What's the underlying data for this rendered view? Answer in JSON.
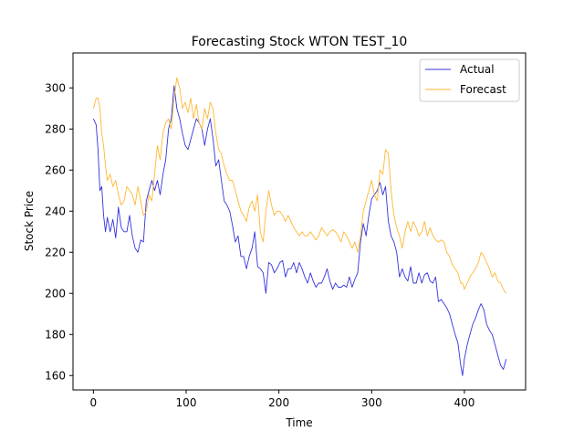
{
  "chart_data": {
    "type": "line",
    "title": "Forecasting Stock WTON TEST_10",
    "xlabel": "Time",
    "ylabel": "Stock Price",
    "xlim": [
      -22,
      466
    ],
    "ylim": [
      153,
      317
    ],
    "xticks": [
      0,
      100,
      200,
      300,
      400
    ],
    "yticks": [
      160,
      180,
      200,
      220,
      240,
      260,
      280,
      300
    ],
    "grid": false,
    "legend_position": "top-right",
    "series": [
      {
        "name": "Actual",
        "color": "#3333dd",
        "points": [
          [
            0,
            285
          ],
          [
            3,
            282
          ],
          [
            5,
            270
          ],
          [
            7,
            250
          ],
          [
            9,
            252
          ],
          [
            11,
            238
          ],
          [
            13,
            230
          ],
          [
            15,
            237
          ],
          [
            18,
            230
          ],
          [
            21,
            236
          ],
          [
            24,
            227
          ],
          [
            27,
            242
          ],
          [
            30,
            232
          ],
          [
            33,
            230
          ],
          [
            36,
            230
          ],
          [
            39,
            238
          ],
          [
            42,
            228
          ],
          [
            45,
            222
          ],
          [
            48,
            220
          ],
          [
            51,
            226
          ],
          [
            54,
            225
          ],
          [
            57,
            245
          ],
          [
            60,
            250
          ],
          [
            63,
            255
          ],
          [
            66,
            250
          ],
          [
            69,
            255
          ],
          [
            72,
            248
          ],
          [
            75,
            258
          ],
          [
            78,
            265
          ],
          [
            81,
            280
          ],
          [
            84,
            285
          ],
          [
            87,
            301
          ],
          [
            90,
            290
          ],
          [
            93,
            285
          ],
          [
            96,
            278
          ],
          [
            99,
            272
          ],
          [
            102,
            270
          ],
          [
            105,
            275
          ],
          [
            108,
            280
          ],
          [
            111,
            285
          ],
          [
            114,
            283
          ],
          [
            117,
            280
          ],
          [
            120,
            272
          ],
          [
            123,
            280
          ],
          [
            126,
            285
          ],
          [
            129,
            275
          ],
          [
            132,
            262
          ],
          [
            135,
            265
          ],
          [
            138,
            255
          ],
          [
            141,
            245
          ],
          [
            144,
            243
          ],
          [
            147,
            240
          ],
          [
            150,
            233
          ],
          [
            153,
            225
          ],
          [
            156,
            228
          ],
          [
            159,
            218
          ],
          [
            162,
            218
          ],
          [
            165,
            212
          ],
          [
            168,
            218
          ],
          [
            171,
            222
          ],
          [
            174,
            230
          ],
          [
            177,
            213
          ],
          [
            180,
            212
          ],
          [
            183,
            210
          ],
          [
            186,
            200
          ],
          [
            189,
            215
          ],
          [
            192,
            214
          ],
          [
            195,
            210
          ],
          [
            198,
            212
          ],
          [
            201,
            215
          ],
          [
            204,
            216
          ],
          [
            207,
            208
          ],
          [
            210,
            212
          ],
          [
            213,
            212
          ],
          [
            216,
            215
          ],
          [
            219,
            210
          ],
          [
            222,
            215
          ],
          [
            225,
            212
          ],
          [
            228,
            208
          ],
          [
            231,
            205
          ],
          [
            234,
            210
          ],
          [
            237,
            206
          ],
          [
            240,
            203
          ],
          [
            243,
            205
          ],
          [
            246,
            205
          ],
          [
            249,
            208
          ],
          [
            252,
            212
          ],
          [
            255,
            206
          ],
          [
            258,
            202
          ],
          [
            261,
            205
          ],
          [
            264,
            203
          ],
          [
            267,
            203
          ],
          [
            270,
            204
          ],
          [
            273,
            203
          ],
          [
            276,
            208
          ],
          [
            279,
            203
          ],
          [
            282,
            207
          ],
          [
            285,
            210
          ],
          [
            288,
            225
          ],
          [
            291,
            234
          ],
          [
            294,
            228
          ],
          [
            297,
            238
          ],
          [
            300,
            246
          ],
          [
            303,
            248
          ],
          [
            306,
            250
          ],
          [
            309,
            254
          ],
          [
            312,
            248
          ],
          [
            315,
            252
          ],
          [
            318,
            235
          ],
          [
            321,
            228
          ],
          [
            324,
            225
          ],
          [
            327,
            220
          ],
          [
            330,
            208
          ],
          [
            333,
            212
          ],
          [
            336,
            208
          ],
          [
            339,
            206
          ],
          [
            342,
            213
          ],
          [
            345,
            205
          ],
          [
            348,
            205
          ],
          [
            351,
            210
          ],
          [
            354,
            205
          ],
          [
            357,
            209
          ],
          [
            360,
            210
          ],
          [
            363,
            206
          ],
          [
            366,
            205
          ],
          [
            369,
            208
          ],
          [
            372,
            196
          ],
          [
            375,
            197
          ],
          [
            378,
            195
          ],
          [
            381,
            193
          ],
          [
            384,
            190
          ],
          [
            387,
            185
          ],
          [
            390,
            180
          ],
          [
            393,
            176
          ],
          [
            396,
            165
          ],
          [
            398,
            160
          ],
          [
            400,
            168
          ],
          [
            403,
            175
          ],
          [
            406,
            180
          ],
          [
            409,
            185
          ],
          [
            412,
            188
          ],
          [
            415,
            192
          ],
          [
            418,
            195
          ],
          [
            421,
            192
          ],
          [
            424,
            185
          ],
          [
            427,
            182
          ],
          [
            430,
            180
          ],
          [
            433,
            175
          ],
          [
            436,
            170
          ],
          [
            439,
            165
          ],
          [
            442,
            163
          ],
          [
            445,
            168
          ]
        ]
      },
      {
        "name": "Forecast",
        "color": "#ffb733",
        "points": [
          [
            0,
            290
          ],
          [
            3,
            295
          ],
          [
            5,
            295
          ],
          [
            7,
            290
          ],
          [
            9,
            278
          ],
          [
            11,
            272
          ],
          [
            13,
            262
          ],
          [
            15,
            255
          ],
          [
            18,
            258
          ],
          [
            21,
            252
          ],
          [
            24,
            255
          ],
          [
            27,
            248
          ],
          [
            30,
            243
          ],
          [
            33,
            245
          ],
          [
            36,
            252
          ],
          [
            39,
            250
          ],
          [
            42,
            248
          ],
          [
            45,
            243
          ],
          [
            48,
            252
          ],
          [
            51,
            245
          ],
          [
            54,
            238
          ],
          [
            57,
            240
          ],
          [
            60,
            248
          ],
          [
            63,
            245
          ],
          [
            66,
            258
          ],
          [
            69,
            272
          ],
          [
            72,
            265
          ],
          [
            75,
            278
          ],
          [
            78,
            283
          ],
          [
            81,
            285
          ],
          [
            84,
            280
          ],
          [
            87,
            295
          ],
          [
            90,
            305
          ],
          [
            93,
            300
          ],
          [
            96,
            290
          ],
          [
            99,
            293
          ],
          [
            102,
            288
          ],
          [
            105,
            295
          ],
          [
            108,
            285
          ],
          [
            111,
            292
          ],
          [
            114,
            283
          ],
          [
            117,
            280
          ],
          [
            120,
            290
          ],
          [
            123,
            285
          ],
          [
            126,
            293
          ],
          [
            129,
            290
          ],
          [
            132,
            278
          ],
          [
            135,
            270
          ],
          [
            138,
            268
          ],
          [
            141,
            262
          ],
          [
            144,
            258
          ],
          [
            147,
            255
          ],
          [
            150,
            255
          ],
          [
            153,
            250
          ],
          [
            156,
            245
          ],
          [
            159,
            240
          ],
          [
            162,
            238
          ],
          [
            165,
            235
          ],
          [
            168,
            242
          ],
          [
            171,
            245
          ],
          [
            174,
            240
          ],
          [
            177,
            248
          ],
          [
            180,
            230
          ],
          [
            183,
            225
          ],
          [
            186,
            240
          ],
          [
            189,
            250
          ],
          [
            192,
            243
          ],
          [
            195,
            238
          ],
          [
            198,
            240
          ],
          [
            201,
            240
          ],
          [
            204,
            238
          ],
          [
            207,
            235
          ],
          [
            210,
            238
          ],
          [
            213,
            235
          ],
          [
            216,
            232
          ],
          [
            219,
            230
          ],
          [
            222,
            228
          ],
          [
            225,
            230
          ],
          [
            228,
            228
          ],
          [
            231,
            228
          ],
          [
            234,
            230
          ],
          [
            237,
            228
          ],
          [
            240,
            226
          ],
          [
            243,
            228
          ],
          [
            246,
            232
          ],
          [
            249,
            230
          ],
          [
            252,
            228
          ],
          [
            255,
            230
          ],
          [
            258,
            231
          ],
          [
            261,
            230
          ],
          [
            264,
            228
          ],
          [
            267,
            225
          ],
          [
            270,
            230
          ],
          [
            273,
            228
          ],
          [
            276,
            225
          ],
          [
            279,
            222
          ],
          [
            282,
            225
          ],
          [
            285,
            220
          ],
          [
            288,
            228
          ],
          [
            291,
            240
          ],
          [
            294,
            245
          ],
          [
            297,
            250
          ],
          [
            300,
            255
          ],
          [
            303,
            248
          ],
          [
            306,
            245
          ],
          [
            309,
            260
          ],
          [
            312,
            258
          ],
          [
            315,
            270
          ],
          [
            318,
            268
          ],
          [
            321,
            250
          ],
          [
            324,
            238
          ],
          [
            327,
            232
          ],
          [
            330,
            228
          ],
          [
            333,
            222
          ],
          [
            336,
            230
          ],
          [
            339,
            235
          ],
          [
            342,
            230
          ],
          [
            345,
            235
          ],
          [
            348,
            232
          ],
          [
            351,
            228
          ],
          [
            354,
            230
          ],
          [
            357,
            235
          ],
          [
            360,
            228
          ],
          [
            363,
            232
          ],
          [
            366,
            228
          ],
          [
            369,
            226
          ],
          [
            372,
            225
          ],
          [
            375,
            226
          ],
          [
            378,
            225
          ],
          [
            381,
            220
          ],
          [
            384,
            218
          ],
          [
            387,
            214
          ],
          [
            390,
            212
          ],
          [
            393,
            210
          ],
          [
            396,
            205
          ],
          [
            398,
            205
          ],
          [
            400,
            202
          ],
          [
            403,
            205
          ],
          [
            406,
            208
          ],
          [
            409,
            210
          ],
          [
            412,
            212
          ],
          [
            415,
            215
          ],
          [
            418,
            220
          ],
          [
            421,
            218
          ],
          [
            424,
            215
          ],
          [
            427,
            212
          ],
          [
            430,
            208
          ],
          [
            433,
            210
          ],
          [
            436,
            206
          ],
          [
            439,
            205
          ],
          [
            442,
            202
          ],
          [
            445,
            200
          ]
        ]
      }
    ]
  }
}
